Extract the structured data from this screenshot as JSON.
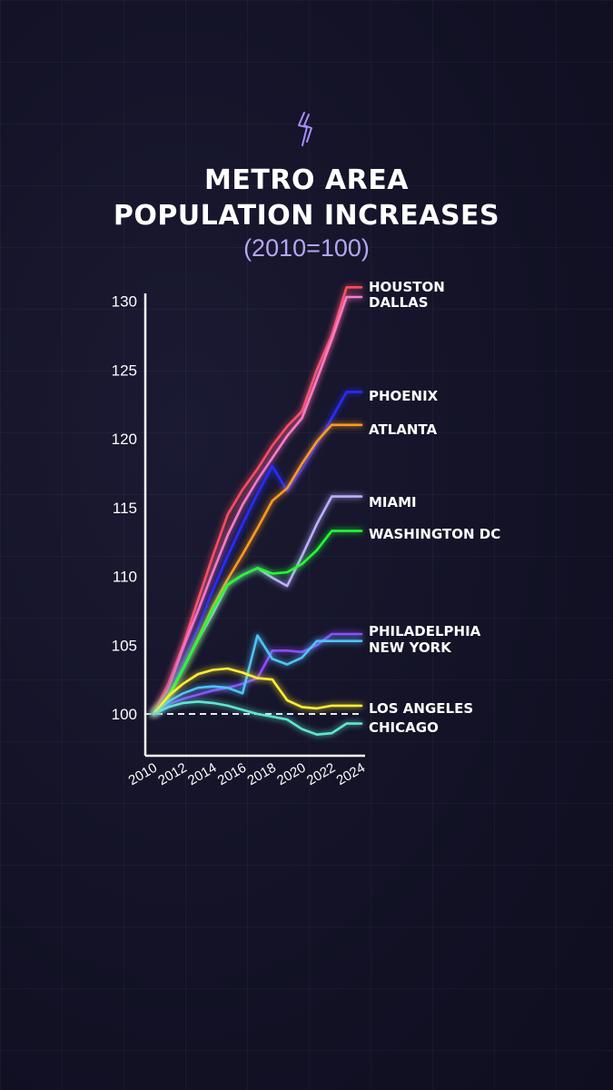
{
  "header": {
    "title_line1": "METRO AREA",
    "title_line2": "POPULATION INCREASES",
    "subtitle": "(2010=100)"
  },
  "chart_data": {
    "type": "line",
    "x": [
      2010,
      2011,
      2012,
      2013,
      2014,
      2015,
      2016,
      2017,
      2018,
      2019,
      2020,
      2021,
      2022,
      2023,
      2024
    ],
    "x_tick_labels": [
      "2010",
      "2012",
      "2014",
      "2016",
      "2018",
      "2020",
      "2022",
      "2024"
    ],
    "y_tick_labels": [
      "100",
      "105",
      "110",
      "115",
      "120",
      "125",
      "130"
    ],
    "ylim": [
      97,
      133
    ],
    "xlim": [
      2010,
      2024
    ],
    "baseline": 100,
    "grid": false,
    "series": [
      {
        "name": "HOUSTON",
        "color": "#ff4b5e",
        "values": [
          100,
          102.2,
          105.0,
          108.3,
          111.5,
          114.5,
          116.3,
          117.8,
          119.5,
          120.9,
          122.0,
          125.0,
          127.5,
          131.0,
          131.0
        ]
      },
      {
        "name": "DALLAS",
        "color": "#ff7ac8",
        "values": [
          100,
          101.8,
          104.8,
          107.5,
          110.3,
          113.0,
          115.2,
          117.0,
          118.6,
          120.2,
          121.5,
          124.3,
          127.2,
          130.3,
          130.3
        ]
      },
      {
        "name": "PHOENIX",
        "color": "#2a2cff",
        "values": [
          100,
          101.5,
          103.8,
          106.3,
          109.0,
          111.5,
          113.8,
          116.0,
          118.0,
          116.2,
          117.8,
          119.6,
          121.5,
          123.4,
          123.4
        ]
      },
      {
        "name": "ATLANTA",
        "color": "#ff9a1a",
        "values": [
          100,
          101.3,
          103.3,
          105.5,
          107.8,
          109.8,
          111.6,
          113.5,
          115.5,
          116.4,
          118.2,
          119.8,
          121.0,
          121.0,
          121.0
        ]
      },
      {
        "name": "MIAMI",
        "color": "#b9b0ff",
        "values": [
          100,
          101.2,
          103.3,
          105.4,
          107.3,
          109.4,
          110.1,
          110.6,
          109.9,
          109.3,
          111.5,
          113.8,
          115.8,
          115.8,
          115.8
        ]
      },
      {
        "name": "WASHINGTON DC",
        "color": "#22ff33",
        "values": [
          100,
          101.2,
          103.3,
          105.4,
          107.6,
          109.4,
          110.1,
          110.6,
          110.2,
          110.3,
          110.9,
          111.9,
          113.3,
          113.3,
          113.3
        ]
      },
      {
        "name": "PHILADELPHIA",
        "color": "#8a4dff",
        "values": [
          100,
          100.7,
          101.1,
          101.4,
          101.7,
          101.9,
          102.2,
          102.6,
          104.6,
          104.6,
          104.5,
          105.0,
          105.8,
          105.8,
          105.8
        ]
      },
      {
        "name": "NEW YORK",
        "color": "#4fc3f7",
        "values": [
          100,
          100.9,
          101.5,
          101.9,
          102.0,
          101.9,
          101.5,
          105.7,
          104.0,
          103.6,
          104.1,
          105.3,
          105.3,
          105.3,
          105.3
        ]
      },
      {
        "name": "LOS ANGELES",
        "color": "#ffee33",
        "values": [
          100,
          101.3,
          102.2,
          102.9,
          103.2,
          103.3,
          103.0,
          102.6,
          102.5,
          101.0,
          100.5,
          100.4,
          100.6,
          100.6,
          100.6
        ]
      },
      {
        "name": "CHICAGO",
        "color": "#5ee6d0",
        "values": [
          100,
          100.5,
          100.8,
          100.9,
          100.8,
          100.6,
          100.3,
          100.0,
          99.8,
          99.6,
          98.9,
          98.5,
          98.6,
          99.3,
          99.3
        ]
      }
    ]
  }
}
